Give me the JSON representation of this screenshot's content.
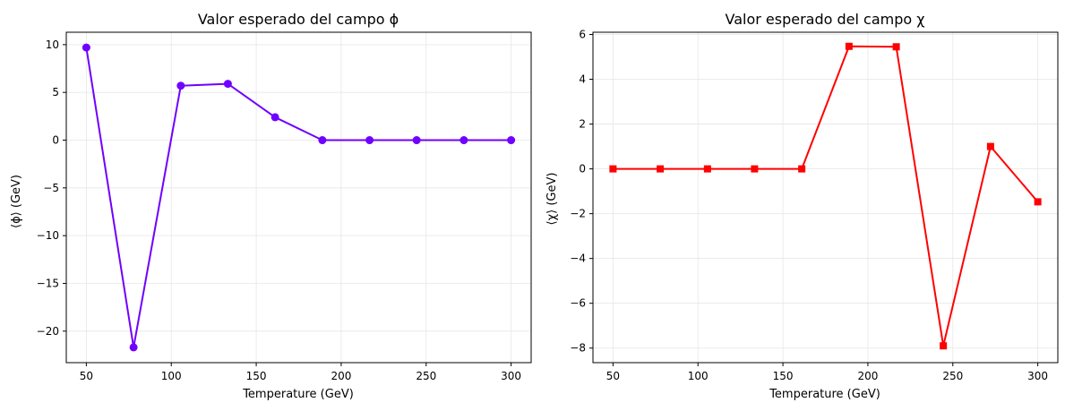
{
  "chart_data": [
    {
      "type": "line",
      "title": "Valor esperado del campo ϕ",
      "xlabel": "Temperature (GeV)",
      "ylabel": "⟨ϕ⟩ (GeV)",
      "xlim": [
        38.2,
        311.8
      ],
      "ylim": [
        -23.3,
        11.3
      ],
      "xticks": [
        50,
        100,
        150,
        200,
        250,
        300
      ],
      "yticks": [
        10,
        5,
        0,
        -5,
        -10,
        -15,
        -20
      ],
      "grid": true,
      "color": "#7000ff",
      "marker": "circle",
      "series": [
        {
          "x": [
            50,
            77.8,
            105.6,
            133.3,
            161.1,
            188.9,
            216.7,
            244.4,
            272.2,
            300
          ],
          "y": [
            9.7,
            -21.7,
            5.7,
            5.9,
            2.4,
            0,
            0,
            0,
            0,
            0
          ]
        }
      ]
    },
    {
      "type": "line",
      "title": "Valor esperado del campo χ",
      "xlabel": "Temperature (GeV)",
      "ylabel": "⟨χ⟩ (GeV)",
      "xlim": [
        38.2,
        311.8
      ],
      "ylim": [
        -8.65,
        6.1
      ],
      "xticks": [
        50,
        100,
        150,
        200,
        250,
        300
      ],
      "yticks": [
        6,
        4,
        2,
        0,
        -2,
        -4,
        -6,
        -8
      ],
      "grid": true,
      "color": "#ff0000",
      "marker": "square",
      "series": [
        {
          "x": [
            50,
            77.8,
            105.6,
            133.3,
            161.1,
            188.9,
            216.7,
            244.4,
            272.2,
            300
          ],
          "y": [
            0,
            0,
            0,
            0,
            0,
            5.47,
            5.45,
            -7.9,
            1.0,
            -1.47
          ]
        }
      ]
    }
  ]
}
